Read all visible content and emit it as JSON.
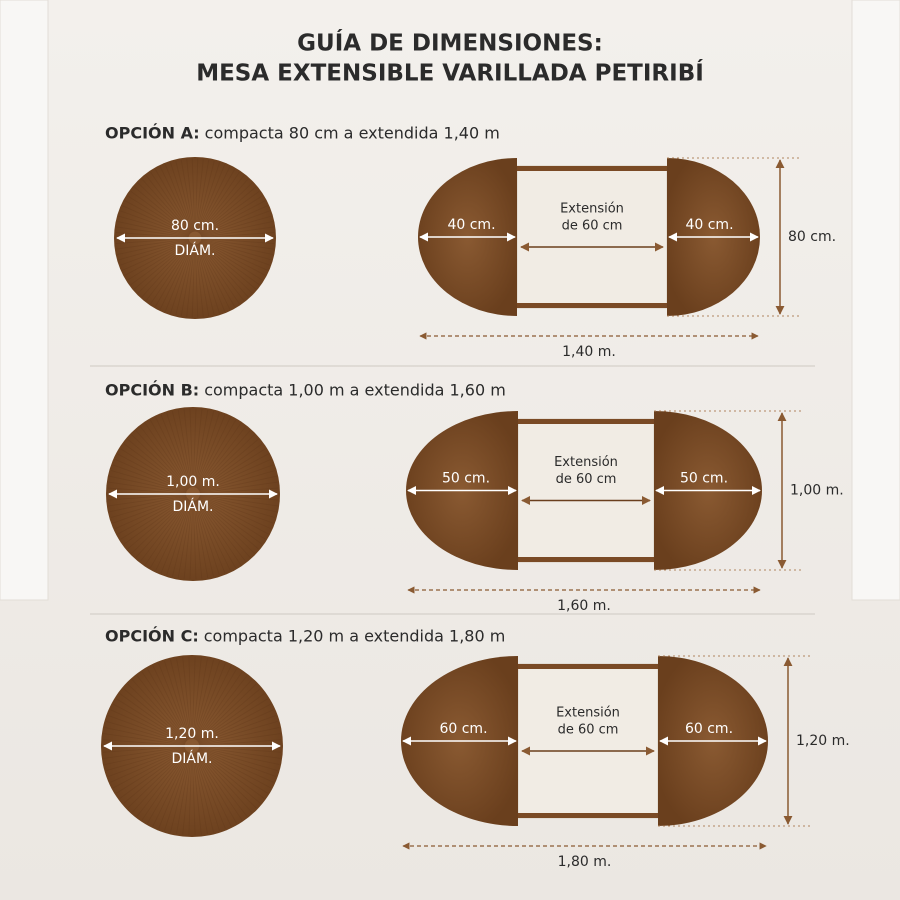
{
  "title": [
    "GUÍA DE DIMENSIONES:",
    "MESA EXTENSIBLE VARILLADA PETIRIBÍ"
  ],
  "options": [
    {
      "label": "OPCIÓN A:",
      "description": "compacta 80 cm a extendida 1,40 m",
      "diameter": "80 cm.",
      "diameter_note": "DIÁM.",
      "half": "40 cm.",
      "extension": [
        "Extensión",
        "de 60 cm"
      ],
      "height": "80 cm.",
      "length": "1,40 m."
    },
    {
      "label": "OPCIÓN B:",
      "description": "compacta 1,00 m a extendida 1,60 m",
      "diameter": "1,00 m.",
      "diameter_note": "DIÁM.",
      "half": "50 cm.",
      "extension": [
        "Extensión",
        "de 60 cm"
      ],
      "height": "1,00 m.",
      "length": "1,60 m."
    },
    {
      "label": "OPCIÓN C:",
      "description": "compacta 1,20 m a extendida 1,80 m",
      "diameter": "1,20 m.",
      "diameter_note": "DIÁM.",
      "half": "60 cm.",
      "extension": [
        "Extensión",
        "de 60 cm"
      ],
      "height": "1,20 m.",
      "length": "1,80 m."
    }
  ]
}
